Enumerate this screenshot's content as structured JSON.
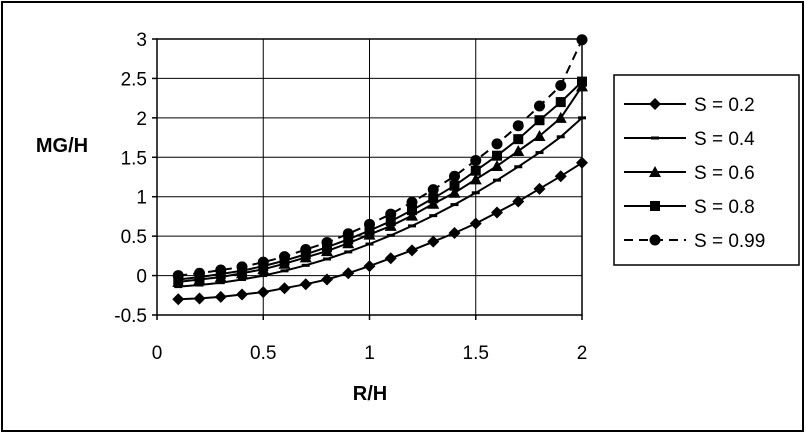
{
  "chart_data": {
    "type": "line",
    "title": "",
    "xlabel": "R/H",
    "ylabel": "MG/H",
    "xlim": [
      0,
      2
    ],
    "ylim": [
      -0.5,
      3
    ],
    "x_ticks": [
      "0",
      "0.5",
      "1",
      "1.5",
      "2"
    ],
    "y_ticks": [
      "-0.5",
      "0",
      "0.5",
      "1",
      "1.5",
      "2",
      "2.5",
      "3"
    ],
    "grid": true,
    "legend_position": "right",
    "x": [
      0.1,
      0.2,
      0.3,
      0.4,
      0.5,
      0.6,
      0.7,
      0.8,
      0.9,
      1.0,
      1.1,
      1.2,
      1.3,
      1.4,
      1.5,
      1.6,
      1.7,
      1.8,
      1.9,
      2.0
    ],
    "series": [
      {
        "name": "S = 0.2",
        "marker": "diamond",
        "dashed": false,
        "values": [
          -0.3,
          -0.29,
          -0.27,
          -0.24,
          -0.21,
          -0.16,
          -0.11,
          -0.05,
          0.03,
          0.12,
          0.22,
          0.32,
          0.43,
          0.54,
          0.66,
          0.8,
          0.94,
          1.1,
          1.26,
          1.43
        ]
      },
      {
        "name": "S = 0.4",
        "marker": "dash",
        "dashed": false,
        "values": [
          -0.14,
          -0.12,
          -0.09,
          -0.05,
          0.0,
          0.06,
          0.13,
          0.21,
          0.3,
          0.4,
          0.51,
          0.63,
          0.76,
          0.9,
          1.05,
          1.21,
          1.38,
          1.56,
          1.76,
          2.0
        ]
      },
      {
        "name": "S = 0.6",
        "marker": "triangle",
        "dashed": false,
        "values": [
          -0.08,
          -0.05,
          -0.02,
          0.03,
          0.08,
          0.15,
          0.23,
          0.31,
          0.41,
          0.52,
          0.63,
          0.76,
          0.91,
          1.05,
          1.22,
          1.39,
          1.58,
          1.77,
          2.0,
          2.4
        ]
      },
      {
        "name": "S = 0.8",
        "marker": "square",
        "dashed": false,
        "values": [
          -0.05,
          -0.02,
          0.02,
          0.06,
          0.12,
          0.19,
          0.27,
          0.36,
          0.46,
          0.57,
          0.69,
          0.83,
          0.98,
          1.14,
          1.33,
          1.52,
          1.73,
          1.97,
          2.2,
          2.46
        ]
      },
      {
        "name": "S = 0.99",
        "marker": "circle",
        "dashed": true,
        "values": [
          0.0,
          0.03,
          0.07,
          0.11,
          0.17,
          0.24,
          0.33,
          0.42,
          0.53,
          0.65,
          0.78,
          0.93,
          1.09,
          1.26,
          1.46,
          1.67,
          1.9,
          2.15,
          2.41,
          2.99
        ]
      }
    ]
  }
}
